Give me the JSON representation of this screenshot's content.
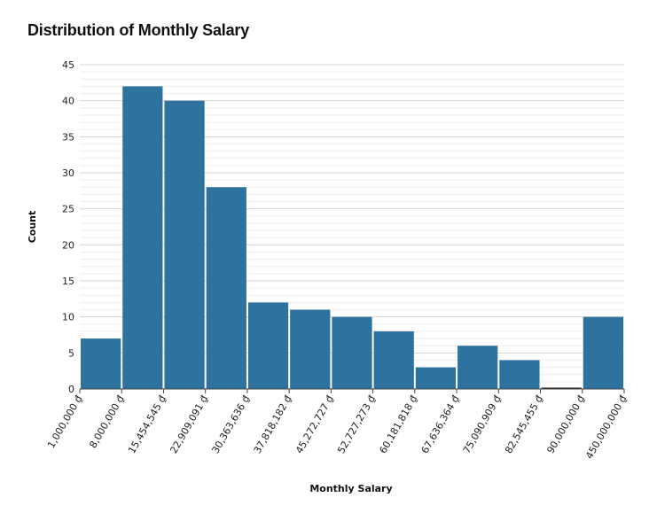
{
  "chart_data": {
    "type": "bar",
    "title": "Distribution of Monthly Salary",
    "xlabel": "Monthly Salary",
    "ylabel": "Count",
    "ylim": [
      0,
      45
    ],
    "y_ticks": [
      0,
      5,
      10,
      15,
      20,
      25,
      30,
      35,
      40,
      45
    ],
    "x_tick_labels": [
      "1,000,000 ₫",
      "8,000,000 ₫",
      "15,454,545 ₫",
      "22,909,091 ₫",
      "30,363,636 ₫",
      "37,818,182 ₫",
      "45,272,727 ₫",
      "52,727,273 ₫",
      "60,181,818 ₫",
      "67,636,364 ₫",
      "75,090,909 ₫",
      "82,545,455 ₫",
      "90,000,000 ₫",
      "450,000,000 ₫"
    ],
    "values": [
      7,
      42,
      40,
      28,
      12,
      11,
      10,
      8,
      3,
      6,
      4,
      0,
      10
    ],
    "grid": true,
    "bar_color": "#2e73a0"
  }
}
